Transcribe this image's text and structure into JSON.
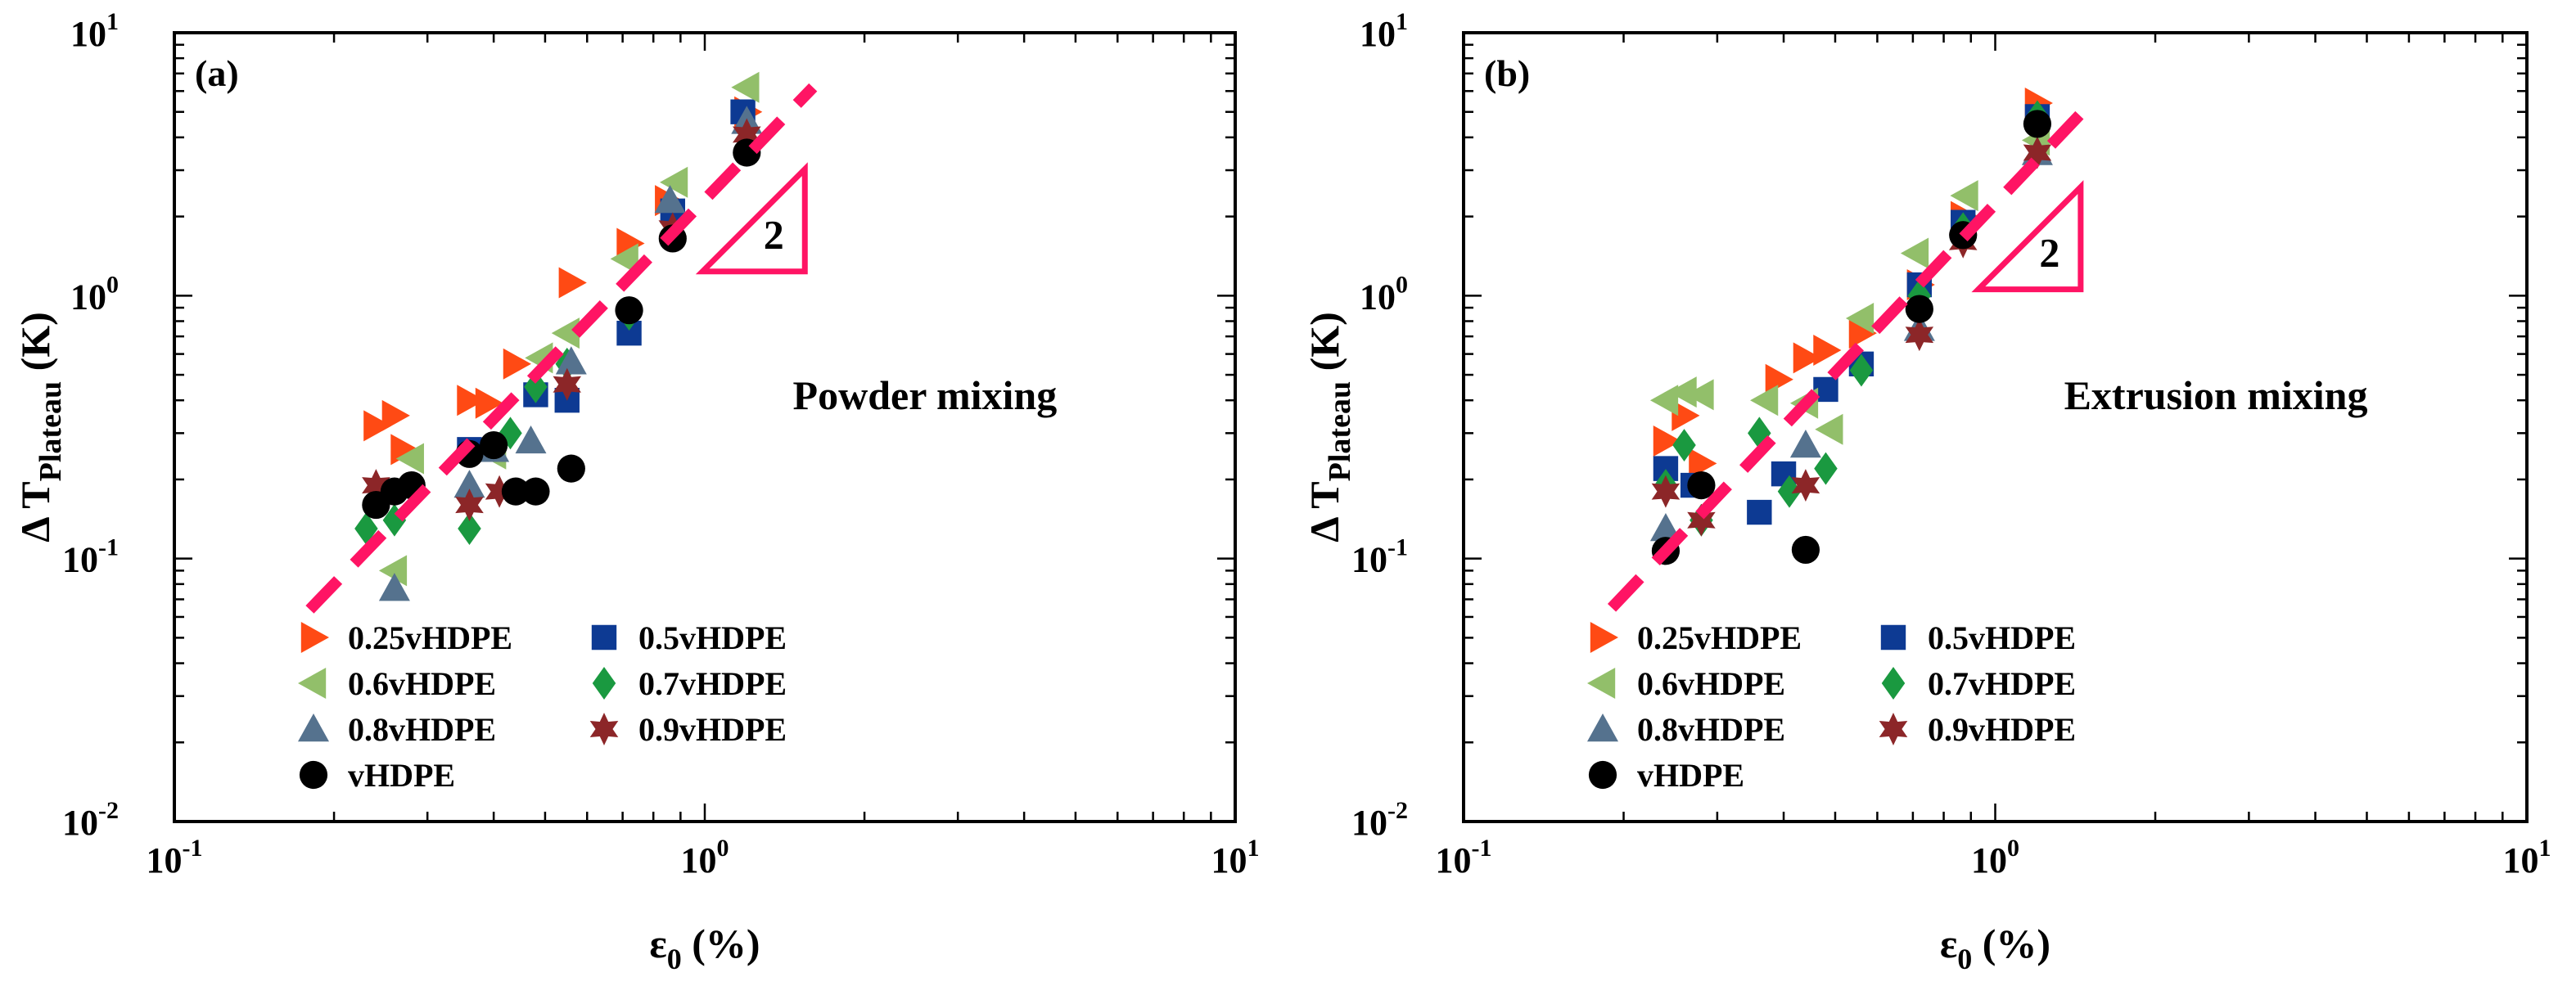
{
  "chart_data": [
    {
      "type": "scatter",
      "panel_label": "(a)",
      "annotation": "Powder mixing",
      "slope_label": "2",
      "xlabel_main": "ε",
      "xlabel_sub": "0",
      "xlabel_unit": "(%)",
      "ylabel_main": "Δ T",
      "ylabel_sub": "Plateau",
      "ylabel_unit": "(K)",
      "xscale": "log",
      "yscale": "log",
      "xlim": [
        0.1,
        10
      ],
      "ylim": [
        0.01,
        10
      ],
      "xticks": [
        {
          "base": "10",
          "exp": "-1"
        },
        {
          "base": "10",
          "exp": "0"
        },
        {
          "base": "10",
          "exp": "1"
        }
      ],
      "yticks": [
        {
          "base": "10",
          "exp": "-2"
        },
        {
          "base": "10",
          "exp": "-1"
        },
        {
          "base": "10",
          "exp": "0"
        },
        {
          "base": "10",
          "exp": "1"
        }
      ],
      "fit_line": {
        "style": "dashed",
        "color": "#ff1464",
        "x": [
          0.18,
          1.6
        ],
        "y": [
          0.064,
          6.2
        ],
        "slope": 2
      },
      "legend": {
        "placement": "bottom-center",
        "columns": 2
      },
      "series": [
        {
          "name": "0.25vHDPE",
          "marker": "triangle-right",
          "color": "#ff4a14",
          "x": [
            0.24,
            0.26,
            0.27,
            0.36,
            0.39,
            0.44,
            0.56,
            0.72,
            0.85,
            1.2
          ],
          "y": [
            0.32,
            0.35,
            0.26,
            0.4,
            0.39,
            0.55,
            1.12,
            1.58,
            2.3,
            5.0
          ]
        },
        {
          "name": "0.5vHDPE",
          "marker": "square",
          "color": "#0d3a93",
          "x": [
            0.36,
            0.48,
            0.55,
            0.72,
            0.87,
            1.18
          ],
          "y": [
            0.26,
            0.42,
            0.4,
            0.72,
            2.1,
            5.0
          ]
        },
        {
          "name": "0.6vHDPE",
          "marker": "triangle-left",
          "color": "#92bf6a",
          "x": [
            0.26,
            0.28,
            0.4,
            0.49,
            0.55,
            0.71,
            0.88,
            1.2
          ],
          "y": [
            0.09,
            0.24,
            0.25,
            0.58,
            0.72,
            1.38,
            2.7,
            6.2
          ]
        },
        {
          "name": "0.7vHDPE",
          "marker": "diamond",
          "color": "#1a9940",
          "x": [
            0.23,
            0.26,
            0.36,
            0.43,
            0.48,
            0.55,
            0.72
          ],
          "y": [
            0.13,
            0.14,
            0.13,
            0.3,
            0.45,
            0.55,
            0.85
          ]
        },
        {
          "name": "0.8vHDPE",
          "marker": "triangle-up",
          "color": "#55728e",
          "x": [
            0.26,
            0.36,
            0.4,
            0.47,
            0.56,
            0.86,
            1.2
          ],
          "y": [
            0.077,
            0.19,
            0.26,
            0.28,
            0.56,
            2.3,
            4.6
          ]
        },
        {
          "name": "0.9vHDPE",
          "marker": "star",
          "color": "#8c2628",
          "x": [
            0.24,
            0.36,
            0.41,
            0.55,
            0.87,
            1.2
          ],
          "y": [
            0.19,
            0.16,
            0.18,
            0.46,
            1.8,
            4.1
          ]
        },
        {
          "name": "vHDPE",
          "marker": "circle",
          "color": "#000000",
          "x": [
            0.24,
            0.26,
            0.28,
            0.36,
            0.4,
            0.44,
            0.48,
            0.56,
            0.72,
            0.87,
            1.2
          ],
          "y": [
            0.16,
            0.18,
            0.19,
            0.25,
            0.27,
            0.18,
            0.18,
            0.22,
            0.88,
            1.65,
            3.5
          ]
        }
      ]
    },
    {
      "type": "scatter",
      "panel_label": "(b)",
      "annotation": "Extrusion mixing",
      "slope_label": "2",
      "xlabel_main": "ε",
      "xlabel_sub": "0",
      "xlabel_unit": "(%)",
      "ylabel_main": "Δ T",
      "ylabel_sub": "Plateau",
      "ylabel_unit": "(K)",
      "xscale": "log",
      "yscale": "log",
      "xlim": [
        0.1,
        10
      ],
      "ylim": [
        0.01,
        10
      ],
      "xticks": [
        {
          "base": "10",
          "exp": "-1"
        },
        {
          "base": "10",
          "exp": "0"
        },
        {
          "base": "10",
          "exp": "1"
        }
      ],
      "yticks": [
        {
          "base": "10",
          "exp": "-2"
        },
        {
          "base": "10",
          "exp": "-1"
        },
        {
          "base": "10",
          "exp": "0"
        },
        {
          "base": "10",
          "exp": "1"
        }
      ],
      "fit_line": {
        "style": "dashed",
        "color": "#ff1464",
        "x": [
          0.19,
          1.5
        ],
        "y": [
          0.065,
          5.3
        ],
        "slope": 2
      },
      "legend": {
        "placement": "bottom-center",
        "columns": 2
      },
      "series": [
        {
          "name": "0.25vHDPE",
          "marker": "triangle-right",
          "color": "#ff4a14",
          "x": [
            0.24,
            0.26,
            0.28,
            0.39,
            0.44,
            0.48,
            0.56,
            0.72,
            0.87,
            1.2
          ],
          "y": [
            0.28,
            0.35,
            0.23,
            0.48,
            0.58,
            0.62,
            0.72,
            1.1,
            2.0,
            5.4
          ]
        },
        {
          "name": "0.5vHDPE",
          "marker": "square",
          "color": "#0d3a93",
          "x": [
            0.24,
            0.27,
            0.36,
            0.4,
            0.48,
            0.56,
            0.72,
            0.87,
            1.2
          ],
          "y": [
            0.22,
            0.19,
            0.15,
            0.21,
            0.44,
            0.55,
            1.1,
            1.9,
            4.8
          ]
        },
        {
          "name": "0.6vHDPE",
          "marker": "triangle-left",
          "color": "#92bf6a",
          "x": [
            0.24,
            0.26,
            0.28,
            0.37,
            0.44,
            0.49,
            0.56,
            0.71,
            0.88,
            1.2
          ],
          "y": [
            0.4,
            0.43,
            0.42,
            0.4,
            0.39,
            0.31,
            0.82,
            1.45,
            2.4,
            3.9
          ]
        },
        {
          "name": "0.7vHDPE",
          "marker": "diamond",
          "color": "#1a9940",
          "x": [
            0.24,
            0.26,
            0.28,
            0.36,
            0.41,
            0.48,
            0.56,
            0.72,
            0.87,
            1.2
          ],
          "y": [
            0.19,
            0.27,
            0.14,
            0.3,
            0.18,
            0.22,
            0.52,
            1.0,
            1.8,
            4.8
          ]
        },
        {
          "name": "0.8vHDPE",
          "marker": "triangle-up",
          "color": "#55728e",
          "x": [
            0.24,
            0.44,
            0.72,
            1.2
          ],
          "y": [
            0.13,
            0.27,
            0.75,
            3.5
          ]
        },
        {
          "name": "0.9vHDPE",
          "marker": "star",
          "color": "#8c2628",
          "x": [
            0.24,
            0.28,
            0.44,
            0.72,
            0.87,
            1.2
          ],
          "y": [
            0.18,
            0.14,
            0.19,
            0.71,
            1.6,
            3.5
          ]
        },
        {
          "name": "vHDPE",
          "marker": "circle",
          "color": "#000000",
          "x": [
            0.24,
            0.28,
            0.44,
            0.72,
            0.87,
            1.2
          ],
          "y": [
            0.107,
            0.19,
            0.108,
            0.89,
            1.7,
            4.5
          ]
        }
      ]
    }
  ]
}
